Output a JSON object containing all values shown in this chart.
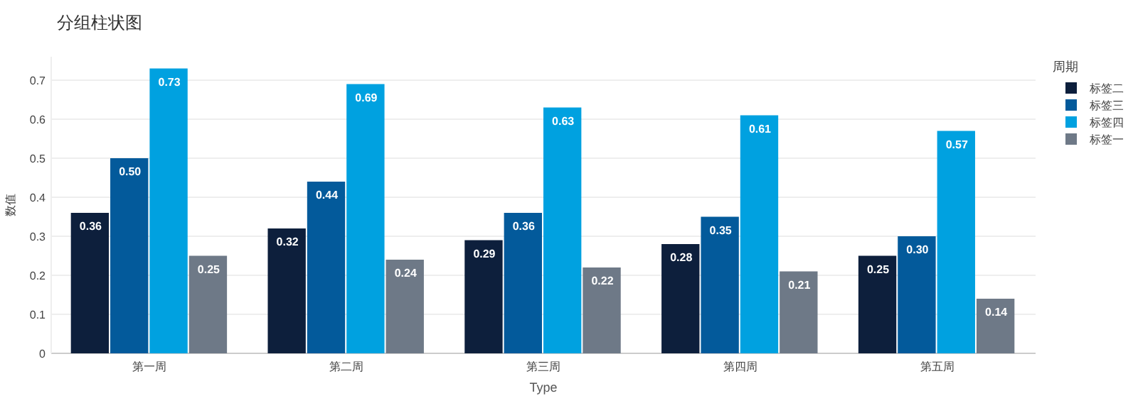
{
  "chart_data": {
    "type": "bar",
    "title": "分组柱状图",
    "xlabel": "Type",
    "ylabel": "数值",
    "legend_title": "周期",
    "categories": [
      "第一周",
      "第二周",
      "第三周",
      "第四周",
      "第五周"
    ],
    "series": [
      {
        "name": "标签二",
        "color": "#0d1f3c",
        "values": [
          0.36,
          0.32,
          0.29,
          0.28,
          0.25
        ],
        "value_labels": [
          "0.36",
          "0.32",
          "0.29",
          "0.28",
          "0.25"
        ]
      },
      {
        "name": "标签三",
        "color": "#035a9b",
        "values": [
          0.5,
          0.44,
          0.36,
          0.35,
          0.3
        ],
        "value_labels": [
          "0.50",
          "0.44",
          "0.36",
          "0.35",
          "0.30"
        ]
      },
      {
        "name": "标签四",
        "color": "#00a1e0",
        "values": [
          0.73,
          0.69,
          0.63,
          0.61,
          0.57
        ],
        "value_labels": [
          "0.73",
          "0.69",
          "0.63",
          "0.61",
          "0.57"
        ]
      },
      {
        "name": "标签一",
        "color": "#6e7987",
        "values": [
          0.25,
          0.24,
          0.22,
          0.21,
          0.14
        ],
        "value_labels": [
          "0.25",
          "0.24",
          "0.22",
          "0.21",
          "0.14"
        ]
      }
    ],
    "ylim": [
      0,
      0.76
    ],
    "yticks": [
      0,
      0.1,
      0.2,
      0.3,
      0.4,
      0.5,
      0.6,
      0.7
    ],
    "grid": "y",
    "legend": "top right"
  }
}
